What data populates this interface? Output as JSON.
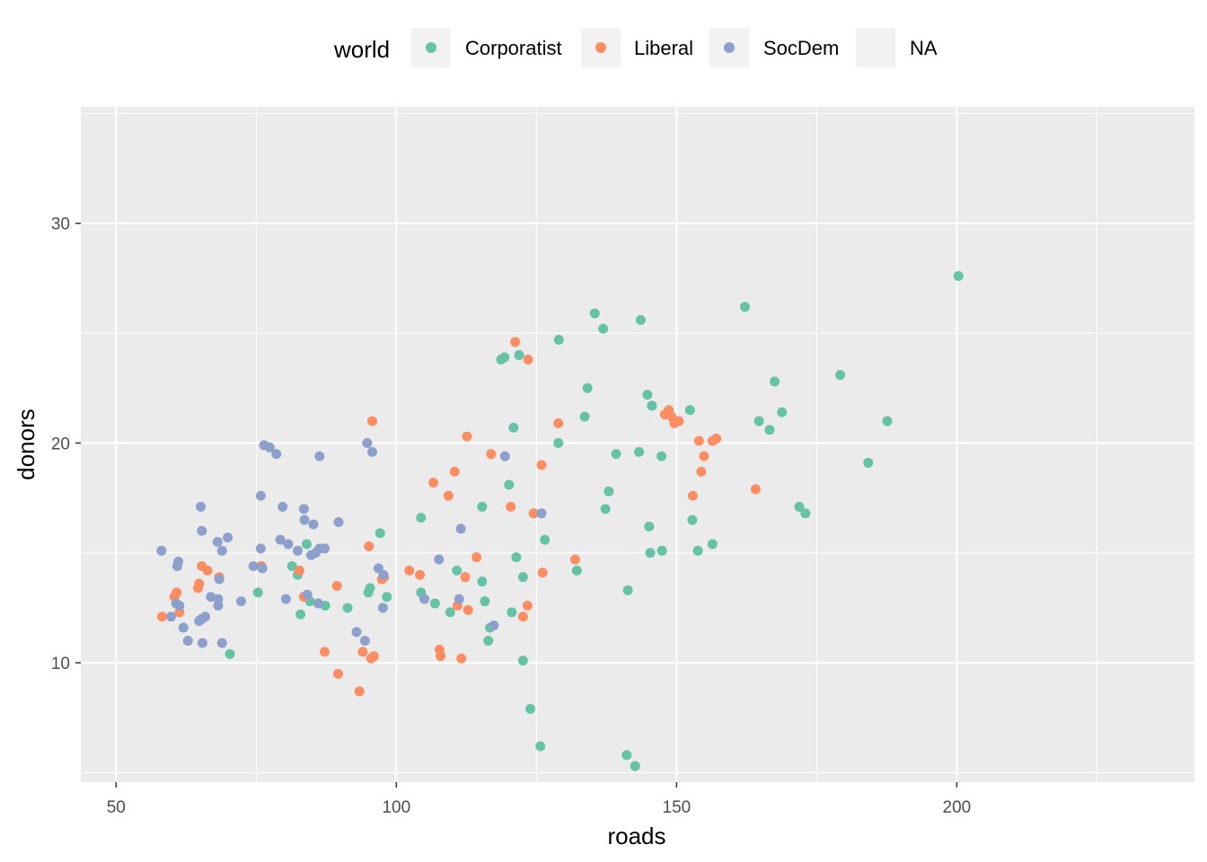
{
  "chart_data": {
    "type": "scatter",
    "xlabel": "roads",
    "ylabel": "donors",
    "xlim": [
      43.7,
      242.4
    ],
    "ylim": [
      4.57,
      35.3
    ],
    "x_ticks": [
      50,
      100,
      150,
      200
    ],
    "y_ticks": [
      10,
      20,
      30
    ],
    "x_tick_labels": [
      "50",
      "100",
      "150",
      "200"
    ],
    "y_tick_labels": [
      "10",
      "20",
      "30"
    ],
    "grid": true,
    "legend": {
      "title": "world",
      "placement": "top",
      "entries": [
        "Corporatist",
        "Liberal",
        "SocDem",
        "NA"
      ]
    },
    "series": [
      {
        "name": "Corporatist",
        "color": "#66c2a5",
        "points": [
          [
            70.3,
            10.4
          ],
          [
            75.3,
            13.2
          ],
          [
            81.4,
            14.4
          ],
          [
            82.4,
            14.0
          ],
          [
            82.9,
            12.2
          ],
          [
            84.0,
            15.4
          ],
          [
            84.6,
            12.8
          ],
          [
            87.3,
            12.6
          ],
          [
            91.3,
            12.5
          ],
          [
            95.0,
            13.2
          ],
          [
            95.3,
            13.4
          ],
          [
            97.1,
            15.9
          ],
          [
            98.3,
            13.0
          ],
          [
            104.4,
            16.6
          ],
          [
            104.4,
            13.2
          ],
          [
            106.9,
            12.7
          ],
          [
            109.6,
            12.3
          ],
          [
            110.8,
            14.2
          ],
          [
            115.3,
            17.1
          ],
          [
            115.3,
            13.7
          ],
          [
            115.8,
            12.8
          ],
          [
            116.4,
            11.0
          ],
          [
            116.7,
            11.6
          ],
          [
            118.7,
            23.8
          ],
          [
            119.3,
            23.9
          ],
          [
            120.1,
            18.1
          ],
          [
            120.6,
            12.3
          ],
          [
            120.9,
            20.7
          ],
          [
            121.4,
            14.8
          ],
          [
            121.9,
            24.0
          ],
          [
            122.6,
            13.9
          ],
          [
            122.6,
            10.1
          ],
          [
            123.9,
            7.9
          ],
          [
            125.7,
            6.2
          ],
          [
            126.5,
            15.6
          ],
          [
            128.9,
            20.0
          ],
          [
            129.0,
            24.7
          ],
          [
            132.2,
            14.2
          ],
          [
            133.6,
            21.2
          ],
          [
            134.1,
            22.5
          ],
          [
            135.4,
            25.9
          ],
          [
            136.9,
            25.2
          ],
          [
            137.3,
            17.0
          ],
          [
            137.9,
            17.8
          ],
          [
            139.2,
            19.5
          ],
          [
            141.1,
            5.8
          ],
          [
            141.3,
            13.3
          ],
          [
            142.6,
            5.3
          ],
          [
            143.3,
            19.6
          ],
          [
            143.6,
            25.6
          ],
          [
            144.8,
            22.2
          ],
          [
            145.1,
            16.2
          ],
          [
            145.3,
            15.0
          ],
          [
            145.6,
            21.7
          ],
          [
            147.3,
            19.4
          ],
          [
            147.4,
            15.1
          ],
          [
            152.4,
            21.5
          ],
          [
            152.8,
            16.5
          ],
          [
            153.8,
            15.1
          ],
          [
            156.4,
            15.4
          ],
          [
            162.2,
            26.2
          ],
          [
            164.7,
            21.0
          ],
          [
            166.6,
            20.6
          ],
          [
            167.5,
            22.8
          ],
          [
            168.8,
            21.4
          ],
          [
            171.9,
            17.1
          ],
          [
            173.0,
            16.8
          ],
          [
            179.2,
            23.1
          ],
          [
            184.2,
            19.1
          ],
          [
            187.6,
            21.0
          ],
          [
            200.3,
            27.6
          ]
        ]
      },
      {
        "name": "Liberal",
        "color": "#fc8d62",
        "points": [
          [
            58.2,
            12.1
          ],
          [
            60.4,
            13.0
          ],
          [
            60.8,
            13.2
          ],
          [
            61.3,
            12.3
          ],
          [
            64.6,
            13.4
          ],
          [
            64.8,
            13.6
          ],
          [
            65.3,
            14.4
          ],
          [
            66.3,
            14.2
          ],
          [
            68.4,
            13.9
          ],
          [
            75.9,
            14.4
          ],
          [
            82.7,
            14.2
          ],
          [
            83.5,
            13.0
          ],
          [
            87.2,
            10.5
          ],
          [
            89.4,
            13.5
          ],
          [
            89.6,
            9.5
          ],
          [
            93.4,
            8.7
          ],
          [
            94.0,
            10.5
          ],
          [
            95.1,
            15.3
          ],
          [
            95.5,
            10.2
          ],
          [
            95.7,
            21.0
          ],
          [
            96.0,
            10.3
          ],
          [
            97.4,
            13.8
          ],
          [
            97.8,
            13.9
          ],
          [
            102.3,
            14.2
          ],
          [
            104.2,
            14.0
          ],
          [
            106.6,
            18.2
          ],
          [
            107.7,
            10.6
          ],
          [
            107.9,
            10.3
          ],
          [
            109.3,
            17.6
          ],
          [
            110.4,
            18.7
          ],
          [
            110.9,
            12.6
          ],
          [
            111.6,
            10.2
          ],
          [
            112.3,
            13.9
          ],
          [
            112.6,
            20.3
          ],
          [
            112.8,
            12.4
          ],
          [
            114.3,
            14.8
          ],
          [
            116.9,
            19.5
          ],
          [
            120.4,
            17.1
          ],
          [
            121.2,
            24.6
          ],
          [
            122.6,
            12.1
          ],
          [
            123.4,
            12.6
          ],
          [
            123.5,
            23.8
          ],
          [
            124.5,
            16.8
          ],
          [
            125.9,
            19.0
          ],
          [
            126.1,
            14.1
          ],
          [
            128.9,
            20.9
          ],
          [
            131.9,
            14.7
          ],
          [
            147.9,
            21.3
          ],
          [
            148.6,
            21.5
          ],
          [
            149.1,
            21.2
          ],
          [
            149.6,
            20.9
          ],
          [
            150.4,
            21.0
          ],
          [
            152.9,
            17.6
          ],
          [
            154.0,
            20.1
          ],
          [
            154.4,
            18.7
          ],
          [
            154.9,
            19.4
          ],
          [
            156.4,
            20.1
          ],
          [
            157.1,
            20.2
          ],
          [
            164.1,
            17.9
          ]
        ]
      },
      {
        "name": "SocDem",
        "color": "#8da0cb",
        "points": [
          [
            58.1,
            15.1
          ],
          [
            59.8,
            12.1
          ],
          [
            60.7,
            12.7
          ],
          [
            60.9,
            14.4
          ],
          [
            61.1,
            14.6
          ],
          [
            61.3,
            12.6
          ],
          [
            62.0,
            11.6
          ],
          [
            62.8,
            11.0
          ],
          [
            64.8,
            11.9
          ],
          [
            65.1,
            17.1
          ],
          [
            65.3,
            16.0
          ],
          [
            65.3,
            12.0
          ],
          [
            65.4,
            10.9
          ],
          [
            65.9,
            12.1
          ],
          [
            66.9,
            13.0
          ],
          [
            68.1,
            15.5
          ],
          [
            68.2,
            12.9
          ],
          [
            68.2,
            12.6
          ],
          [
            68.4,
            13.8
          ],
          [
            68.9,
            15.1
          ],
          [
            68.9,
            10.9
          ],
          [
            69.9,
            15.7
          ],
          [
            72.3,
            12.8
          ],
          [
            74.5,
            14.4
          ],
          [
            75.8,
            15.2
          ],
          [
            75.8,
            17.6
          ],
          [
            76.1,
            14.3
          ],
          [
            76.4,
            19.9
          ],
          [
            77.4,
            19.8
          ],
          [
            78.6,
            19.5
          ],
          [
            79.3,
            15.6
          ],
          [
            79.7,
            17.1
          ],
          [
            80.3,
            12.9
          ],
          [
            80.7,
            15.4
          ],
          [
            82.4,
            15.1
          ],
          [
            83.5,
            17.0
          ],
          [
            83.6,
            16.5
          ],
          [
            84.1,
            13.1
          ],
          [
            84.8,
            14.9
          ],
          [
            85.2,
            16.3
          ],
          [
            85.6,
            15.0
          ],
          [
            86.1,
            12.7
          ],
          [
            86.3,
            19.4
          ],
          [
            86.3,
            15.2
          ],
          [
            87.2,
            15.2
          ],
          [
            89.7,
            16.4
          ],
          [
            92.9,
            11.4
          ],
          [
            94.4,
            11.0
          ],
          [
            94.8,
            20.0
          ],
          [
            95.7,
            19.6
          ],
          [
            96.8,
            14.3
          ],
          [
            97.6,
            12.5
          ],
          [
            97.7,
            14.0
          ],
          [
            105.0,
            12.9
          ],
          [
            107.6,
            14.7
          ],
          [
            111.2,
            12.9
          ],
          [
            111.5,
            16.1
          ],
          [
            117.4,
            11.7
          ],
          [
            119.4,
            19.4
          ],
          [
            125.9,
            16.8
          ]
        ]
      },
      {
        "name": "NA",
        "color": "#f2f2f2",
        "points": []
      }
    ]
  }
}
